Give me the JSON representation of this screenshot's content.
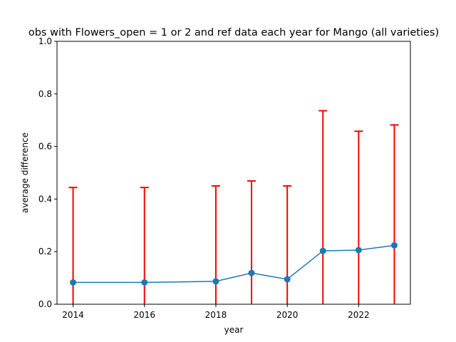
{
  "chart_data": {
    "type": "line",
    "title": "obs with Flowers_open = 1 or 2 and ref data each year for Mango (all varieties)",
    "xlabel": "year",
    "ylabel": "average difference",
    "xlim": [
      2013.55,
      2023.45
    ],
    "ylim": [
      0.0,
      1.0
    ],
    "xticks": [
      2014,
      2016,
      2018,
      2020,
      2022
    ],
    "xtick_labels": [
      "2014",
      "2016",
      "2018",
      "2020",
      "2022"
    ],
    "yticks": [
      0.0,
      0.2,
      0.4,
      0.6,
      0.8,
      1.0
    ],
    "ytick_labels": [
      "0.0",
      "0.2",
      "0.4",
      "0.6",
      "0.8",
      "1.0"
    ],
    "grid": false,
    "series": [
      {
        "x": [
          2014,
          2016,
          2018,
          2019,
          2020,
          2021,
          2022,
          2023
        ],
        "values": [
          0.083,
          0.083,
          0.087,
          0.119,
          0.095,
          0.203,
          0.206,
          0.224
        ],
        "error_upper": [
          0.361,
          0.361,
          0.363,
          0.35,
          0.355,
          0.533,
          0.452,
          0.458
        ],
        "error_lower": [
          0.0,
          0.0,
          0.0,
          0.0,
          0.0,
          0.0,
          0.0,
          0.0
        ],
        "color": "#1f77b4",
        "error_color": "#ff0000"
      }
    ]
  }
}
